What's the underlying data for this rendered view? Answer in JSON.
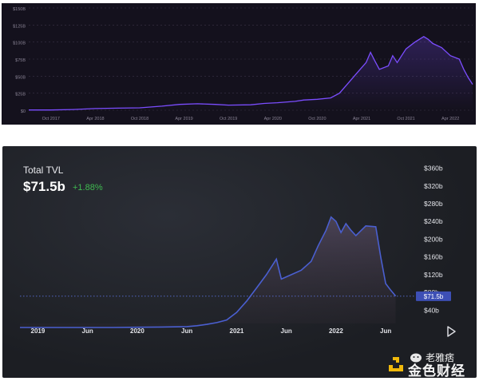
{
  "top_chart": {
    "chart_data": {
      "type": "area",
      "yticks": [
        "$0",
        "$25B",
        "$50B",
        "$75B",
        "$100B",
        "$125B",
        "$150B"
      ],
      "ylim": [
        0,
        150
      ],
      "xticks": [
        {
          "t": 2017.75,
          "label": "Oct 2017"
        },
        {
          "t": 2018.25,
          "label": "Apr 2018"
        },
        {
          "t": 2018.75,
          "label": "Oct 2018"
        },
        {
          "t": 2019.25,
          "label": "Apr 2019"
        },
        {
          "t": 2019.75,
          "label": "Oct 2019"
        },
        {
          "t": 2020.25,
          "label": "Apr 2020"
        },
        {
          "t": 2020.75,
          "label": "Oct 2020"
        },
        {
          "t": 2021.25,
          "label": "Apr 2021"
        },
        {
          "t": 2021.75,
          "label": "Oct 2021"
        },
        {
          "t": 2022.25,
          "label": "Apr 2022"
        }
      ],
      "xlim": [
        2017.5,
        2022.5
      ],
      "grid": true,
      "series": [
        {
          "color": "#7b4dff",
          "points": [
            [
              2017.5,
              0.3
            ],
            [
              2017.75,
              0.4
            ],
            [
              2018.0,
              1.0
            ],
            [
              2018.25,
              2.5
            ],
            [
              2018.5,
              3.0
            ],
            [
              2018.75,
              3.5
            ],
            [
              2019.0,
              6.0
            ],
            [
              2019.2,
              8.5
            ],
            [
              2019.4,
              9.5
            ],
            [
              2019.6,
              8.5
            ],
            [
              2019.75,
              7.5
            ],
            [
              2020.0,
              8.0
            ],
            [
              2020.15,
              10.0
            ],
            [
              2020.3,
              11.0
            ],
            [
              2020.5,
              13.0
            ],
            [
              2020.6,
              15.0
            ],
            [
              2020.75,
              16.0
            ],
            [
              2020.9,
              18.0
            ],
            [
              2021.0,
              25.0
            ],
            [
              2021.1,
              40.0
            ],
            [
              2021.2,
              55.0
            ],
            [
              2021.3,
              70.0
            ],
            [
              2021.35,
              85.0
            ],
            [
              2021.4,
              72.0
            ],
            [
              2021.45,
              60.0
            ],
            [
              2021.55,
              65.0
            ],
            [
              2021.6,
              80.0
            ],
            [
              2021.65,
              70.0
            ],
            [
              2021.75,
              90.0
            ],
            [
              2021.85,
              100.0
            ],
            [
              2021.95,
              108.0
            ],
            [
              2022.0,
              104.0
            ],
            [
              2022.05,
              98.0
            ],
            [
              2022.15,
              92.0
            ],
            [
              2022.25,
              80.0
            ],
            [
              2022.35,
              75.0
            ],
            [
              2022.4,
              60.0
            ],
            [
              2022.45,
              48.0
            ],
            [
              2022.5,
              38.0
            ]
          ]
        }
      ]
    }
  },
  "bottom_chart": {
    "title": "Total TVL",
    "value": "$71.5b",
    "change": "+1.88%",
    "chart_data": {
      "type": "area",
      "yticks": [
        "$40b",
        "$80b",
        "$120b",
        "$160b",
        "$200b",
        "$240b",
        "$280b",
        "$320b",
        "$360b"
      ],
      "ylim": [
        10,
        370
      ],
      "xticks": [
        {
          "t": 2019.0,
          "label": "2019"
        },
        {
          "t": 2019.5,
          "label": "Jun"
        },
        {
          "t": 2020.0,
          "label": "2020"
        },
        {
          "t": 2020.5,
          "label": "Jun"
        },
        {
          "t": 2021.0,
          "label": "2021"
        },
        {
          "t": 2021.5,
          "label": "Jun"
        },
        {
          "t": 2022.0,
          "label": "2022"
        },
        {
          "t": 2022.5,
          "label": "Jun"
        }
      ],
      "xlim": [
        2018.82,
        2022.78
      ],
      "current_label": "$71.5b",
      "current_value": 71.5,
      "series": [
        {
          "color": "#4a5fd0",
          "points": [
            [
              2018.82,
              1
            ],
            [
              2019.0,
              1
            ],
            [
              2019.25,
              1
            ],
            [
              2019.5,
              1
            ],
            [
              2019.75,
              1
            ],
            [
              2020.0,
              1.5
            ],
            [
              2020.25,
              2
            ],
            [
              2020.5,
              3
            ],
            [
              2020.6,
              5
            ],
            [
              2020.7,
              8
            ],
            [
              2020.8,
              12
            ],
            [
              2020.9,
              18
            ],
            [
              2021.0,
              35
            ],
            [
              2021.1,
              60
            ],
            [
              2021.2,
              90
            ],
            [
              2021.3,
              120
            ],
            [
              2021.4,
              155
            ],
            [
              2021.45,
              110
            ],
            [
              2021.55,
              120
            ],
            [
              2021.65,
              130
            ],
            [
              2021.75,
              150
            ],
            [
              2021.82,
              185
            ],
            [
              2021.9,
              220
            ],
            [
              2021.95,
              250
            ],
            [
              2022.0,
              240
            ],
            [
              2022.05,
              215
            ],
            [
              2022.1,
              235
            ],
            [
              2022.15,
              220
            ],
            [
              2022.2,
              208
            ],
            [
              2022.3,
              230
            ],
            [
              2022.4,
              228
            ],
            [
              2022.45,
              160
            ],
            [
              2022.5,
              100
            ],
            [
              2022.55,
              85
            ],
            [
              2022.6,
              72
            ]
          ]
        }
      ]
    }
  },
  "watermark": {
    "caption": "老雅痞",
    "text": "金色财经"
  }
}
